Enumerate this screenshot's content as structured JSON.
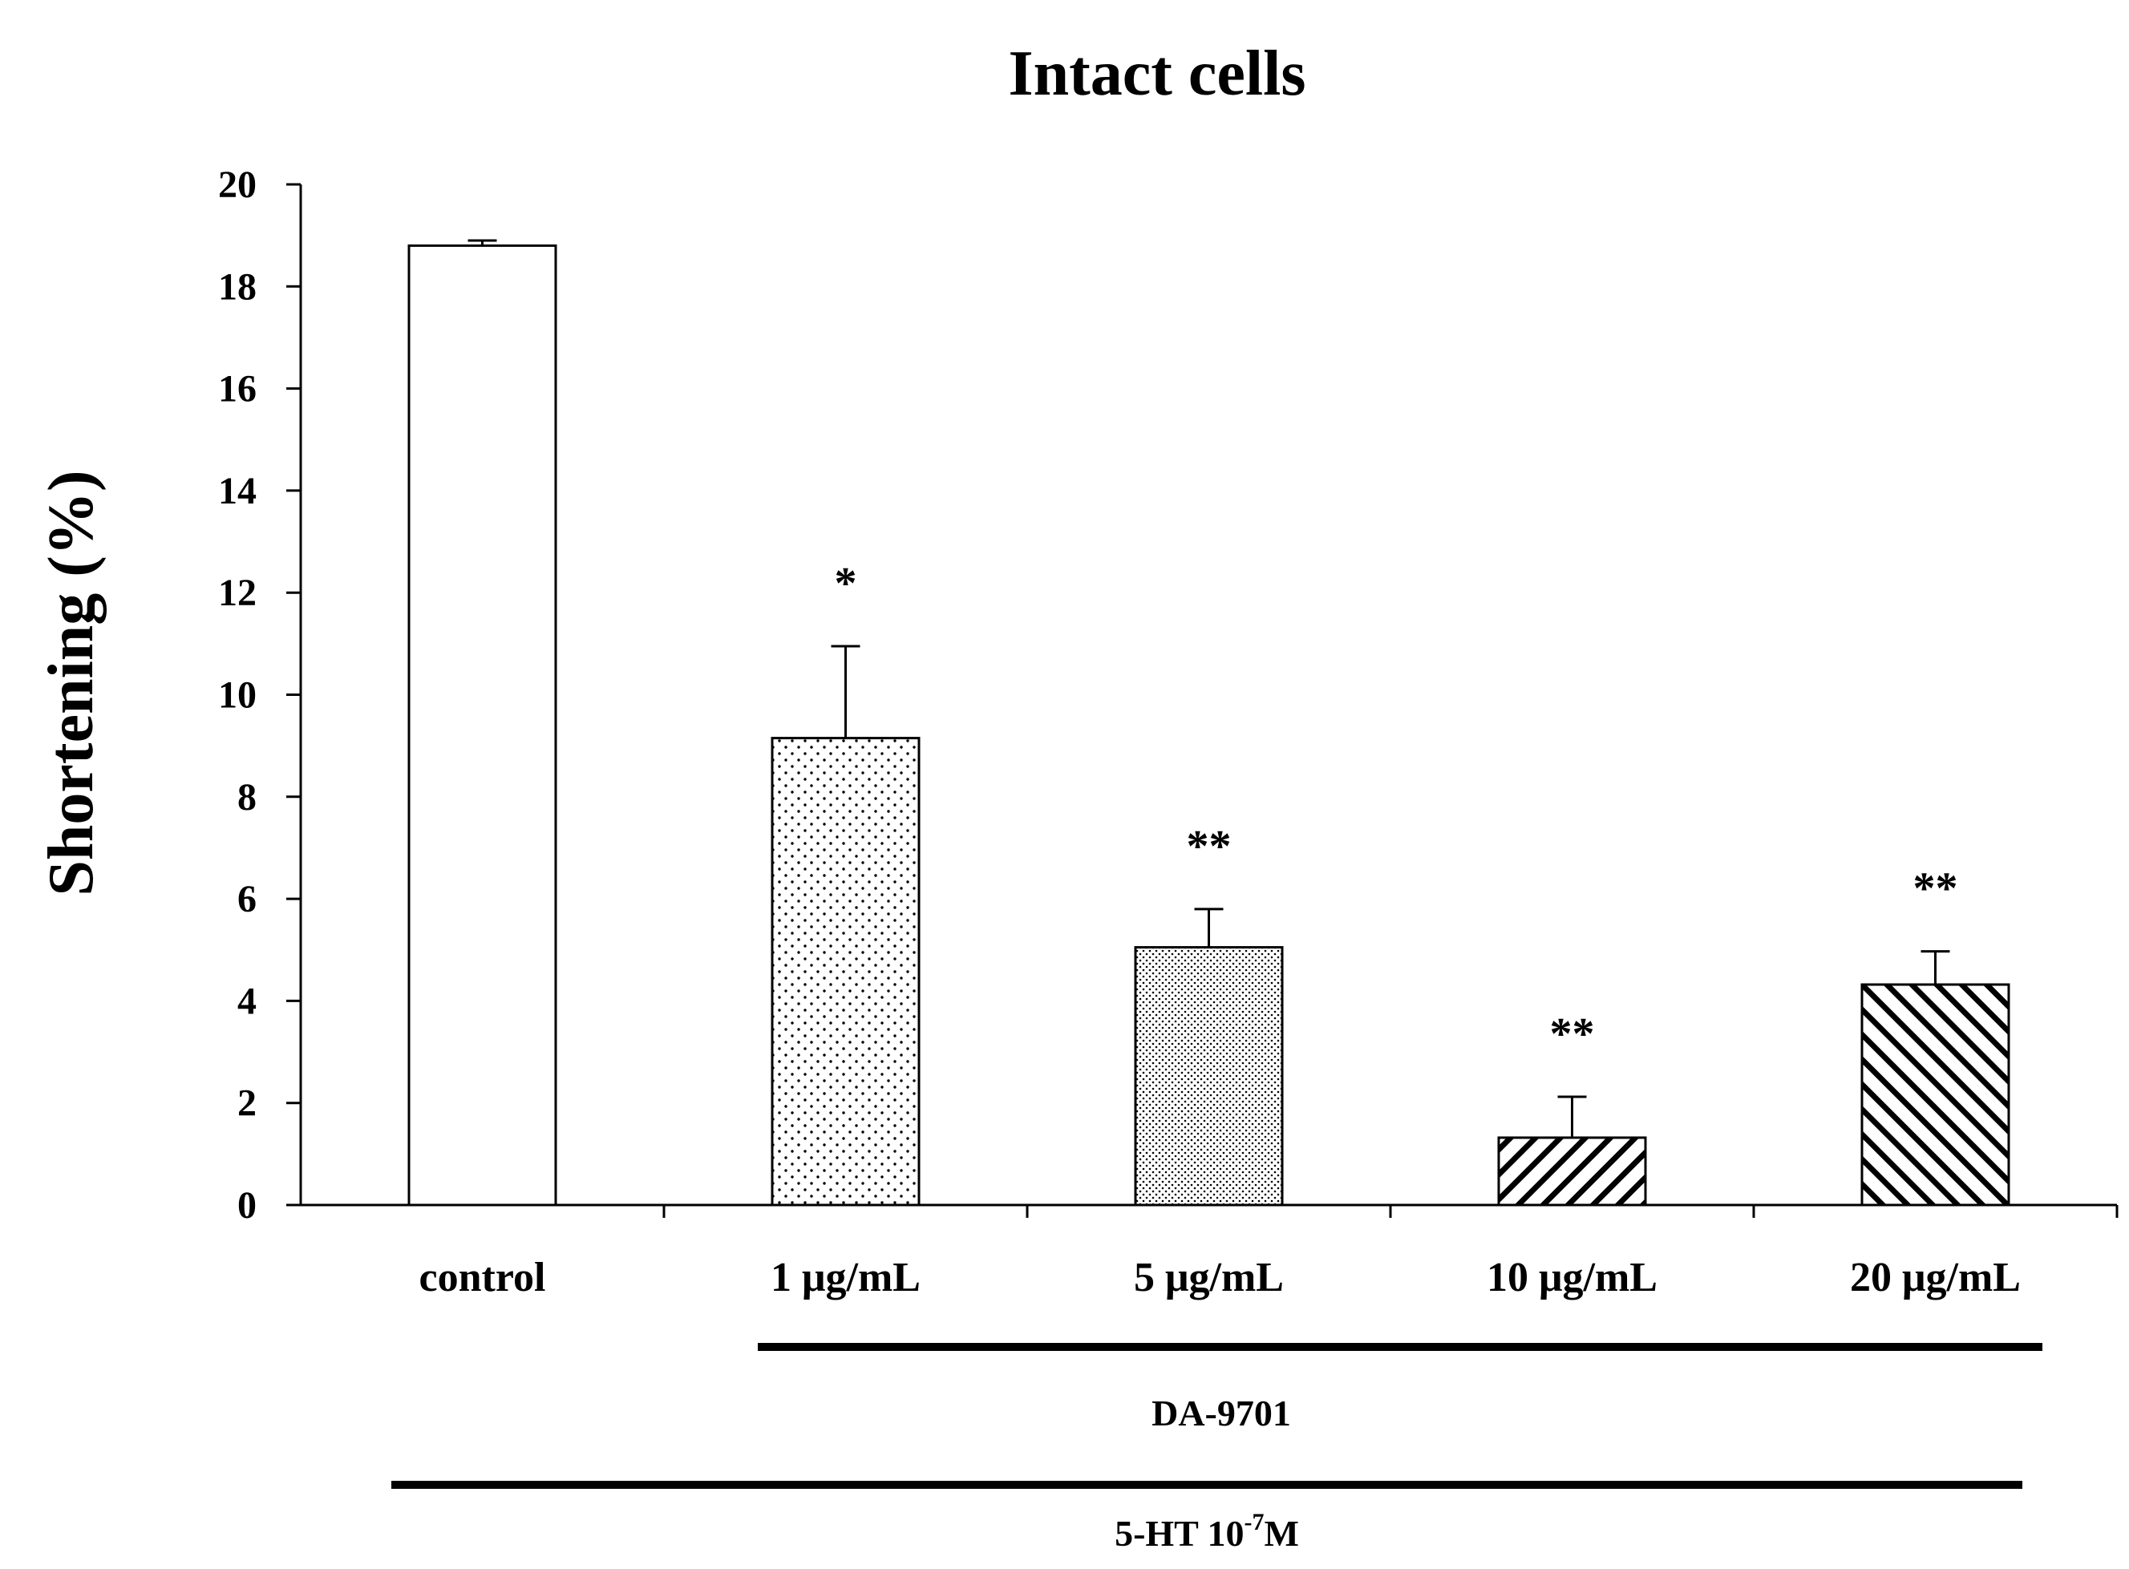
{
  "chart_data": {
    "type": "bar",
    "title": "Intact cells",
    "xlabel": "",
    "ylabel": "Shortening (%)",
    "ylim": [
      0,
      20
    ],
    "yticks": [
      "0",
      "2",
      "4",
      "6",
      "8",
      "10",
      "12",
      "14",
      "16",
      "18",
      "20"
    ],
    "categories": [
      "control",
      "1 μg/mL",
      "5 μg/mL",
      "10 μg/mL",
      "20 μg/mL"
    ],
    "values": [
      18.8,
      9.15,
      5.05,
      1.32,
      4.32
    ],
    "errors": [
      0.1,
      1.8,
      0.75,
      0.8,
      0.65
    ],
    "significance": [
      "",
      "*",
      "**",
      "**",
      "**"
    ],
    "patterns": [
      "none",
      "fine-dots",
      "dense-dots",
      "hatch-backslash",
      "hatch-slash"
    ],
    "grid": false,
    "groups": [
      {
        "label": "DA-9701"
      },
      {
        "label_base": "5-HT 10",
        "label_sup": "-7",
        "label_unit": "M"
      }
    ]
  }
}
